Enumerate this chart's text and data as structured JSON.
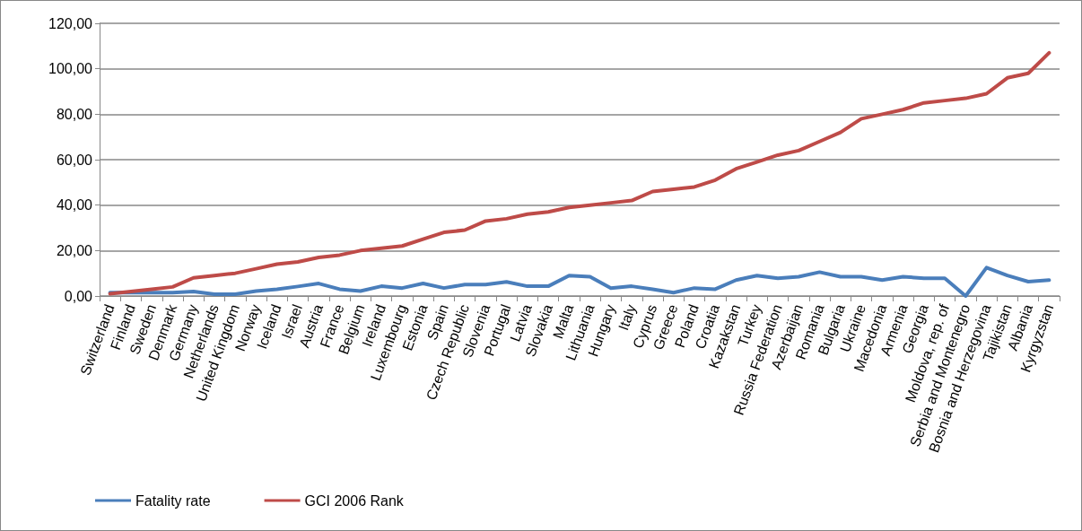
{
  "chart_data": {
    "type": "line",
    "categories": [
      "Switzerland",
      "Finland",
      "Sweden",
      "Denmark",
      "Germany",
      "Netherlands",
      "United Kingdom",
      "Norway",
      "Iceland",
      "Israel",
      "Austria",
      "France",
      "Belgium",
      "Ireland",
      "Luxembourg",
      "Estonia",
      "Spain",
      "Czech Republic",
      "Slovenia",
      "Portugal",
      "Latvia",
      "Slovakia",
      "Malta",
      "Lithuania",
      "Hungary",
      "Italy",
      "Cyprus",
      "Greece",
      "Poland",
      "Croatia",
      "Kazakstan",
      "Turkey",
      "Russia Federation",
      "Azerbaijan",
      "Romania",
      "Bulgaria",
      "Ukraine",
      "Macedonia",
      "Armenia",
      "Georgia",
      "Moldova, rep. of",
      "Serbia and Montenegro",
      "Bosnia and Herzegovina",
      "Tajikistan",
      "Albania",
      "Kyrgyzstan"
    ],
    "series": [
      {
        "name": "Fatality rate",
        "color": "#4a7ebb",
        "values": [
          1.5,
          1.5,
          1.5,
          1.5,
          2,
          0.8,
          0.8,
          2.2,
          3,
          4.2,
          5.5,
          3,
          2.2,
          4.3,
          3.5,
          5.5,
          3.5,
          5,
          5,
          6.2,
          4.3,
          4.3,
          9,
          8.5,
          3.5,
          4.3,
          3,
          1.5,
          3.5,
          3,
          7,
          9,
          7.8,
          8.5,
          10.5,
          8.5,
          8.5,
          7,
          8.5,
          7.8,
          7.8,
          0,
          12.5,
          9,
          6.3,
          7
        ]
      },
      {
        "name": "GCI 2006 Rank",
        "color": "#be4b48",
        "values": [
          1,
          2,
          3,
          4,
          8,
          9,
          10,
          12,
          14,
          15,
          17,
          18,
          20,
          21,
          22,
          25,
          28,
          29,
          33,
          34,
          36,
          37,
          39,
          40,
          41,
          42,
          46,
          47,
          48,
          51,
          56,
          59,
          62,
          64,
          68,
          72,
          78,
          80,
          82,
          85,
          86,
          87,
          89,
          96,
          98,
          107
        ]
      }
    ],
    "ylim": [
      0,
      120
    ],
    "yticks": [
      {
        "value": 0,
        "label": "0,00"
      },
      {
        "value": 20,
        "label": "20,00"
      },
      {
        "value": 40,
        "label": "40,00"
      },
      {
        "value": 60,
        "label": "60,00"
      },
      {
        "value": 80,
        "label": "80,00"
      },
      {
        "value": 100,
        "label": "100,00"
      },
      {
        "value": 120,
        "label": "120,00"
      }
    ],
    "grid": "y",
    "legend": "bottom left",
    "marker": "none",
    "line_style": "solid"
  }
}
